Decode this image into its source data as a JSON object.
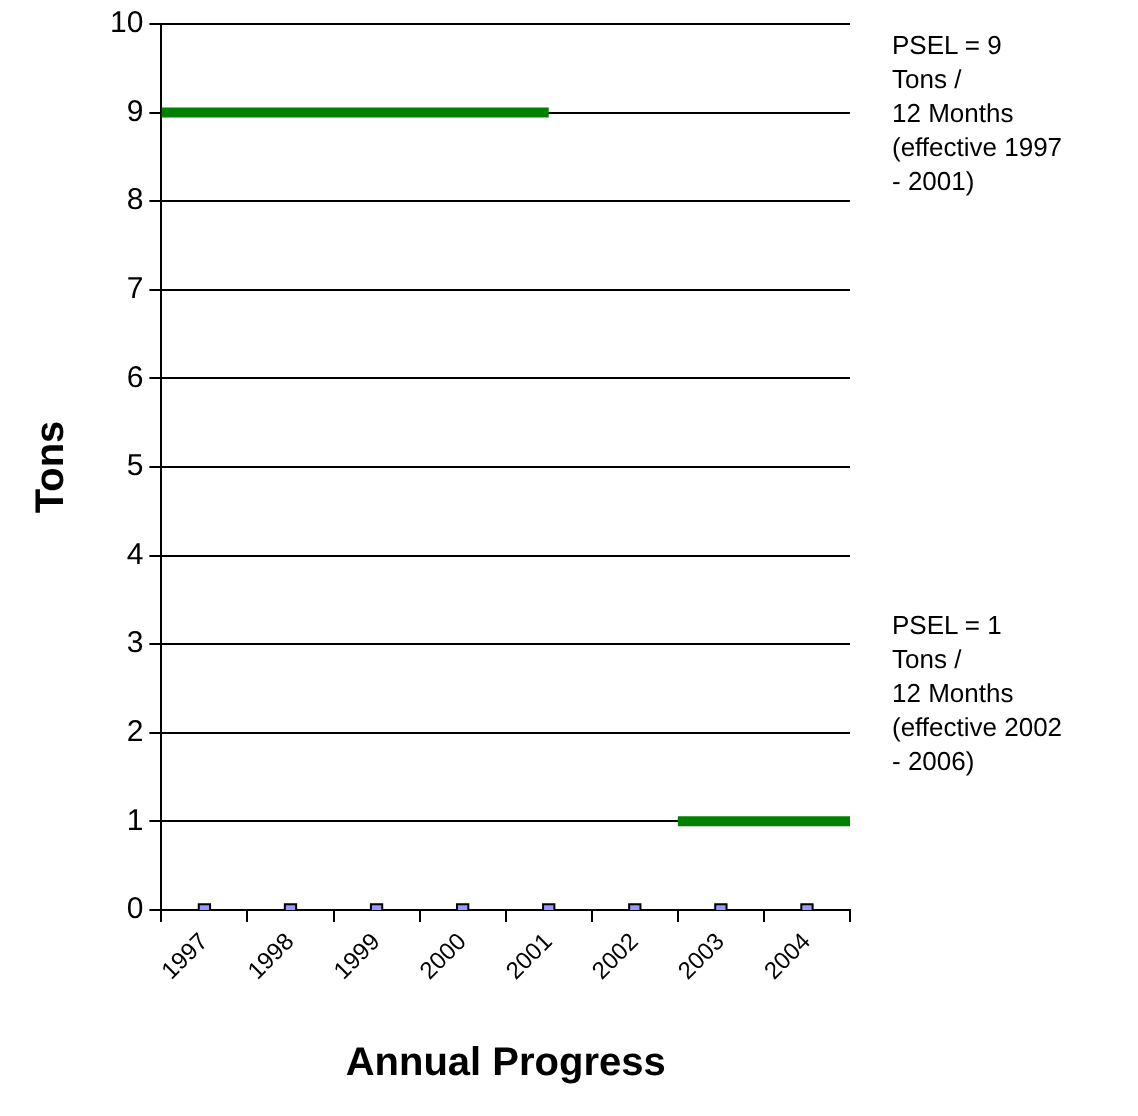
{
  "chart_data": {
    "type": "line",
    "xlabel": "Annual Progress",
    "ylabel": "Tons",
    "xlim": [
      1996.5,
      2004.5
    ],
    "xticks": [
      {
        "value": 1996.5,
        "label": null
      },
      1997,
      {
        "value": 1997.5,
        "label": null
      },
      1998,
      {
        "value": 1998.5,
        "label": null
      },
      1999,
      {
        "value": 1999.5,
        "label": null
      },
      2000,
      {
        "value": 2000.5,
        "label": null
      },
      2001,
      {
        "value": 2001.5,
        "label": null
      },
      2002,
      {
        "value": 2002.5,
        "label": null
      },
      2003,
      {
        "value": 2003.5,
        "label": null
      },
      2004,
      {
        "value": 2004.5,
        "label": null
      }
    ],
    "ylim": [
      0,
      10
    ],
    "yticks": [
      0,
      1,
      2,
      3,
      4,
      5,
      6,
      7,
      8,
      9,
      10
    ],
    "grid": "y",
    "legend": false,
    "series": [
      {
        "color": "#008000",
        "x": [
          1996.5,
          2001
        ],
        "values": [
          9,
          9
        ],
        "marker": "none"
      },
      {
        "color": "#008000",
        "x": [
          2002.5,
          2004.5
        ],
        "values": [
          1,
          1
        ],
        "marker": "none"
      },
      {
        "type": "scatter",
        "color": "#9999ff",
        "x": [
          1997,
          1998,
          1999,
          2000,
          2001,
          2002,
          2003,
          2004
        ],
        "values": [
          0,
          0,
          0,
          0,
          0,
          0,
          0,
          0
        ],
        "marker": "square"
      }
    ],
    "annotations": [
      "PSEL = 9\n Tons /\n12 Months\n(effective 1997\n- 2001)",
      "PSEL = 1\n Tons /\n12 Months\n(effective 2002\n- 2006)"
    ]
  }
}
